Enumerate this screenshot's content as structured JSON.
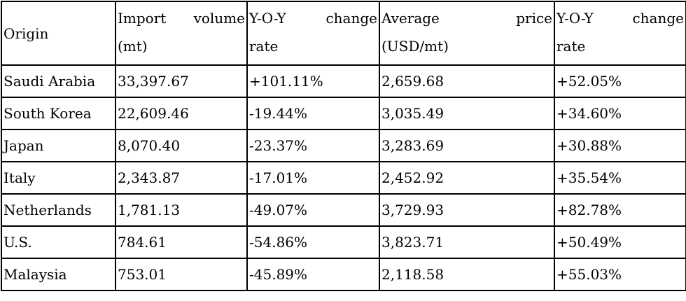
{
  "table": {
    "headers": [
      {
        "lines": [
          [
            "Origin"
          ]
        ]
      },
      {
        "lines": [
          [
            "Import",
            "volume"
          ],
          [
            "(mt)"
          ]
        ]
      },
      {
        "lines": [
          [
            "Y-O-Y",
            "change"
          ],
          [
            "rate"
          ]
        ]
      },
      {
        "lines": [
          [
            "Average",
            "price"
          ],
          [
            "(USD/mt)"
          ]
        ]
      },
      {
        "lines": [
          [
            "Y-O-Y",
            "change"
          ],
          [
            "rate"
          ]
        ]
      }
    ],
    "rows": [
      [
        "Saudi Arabia",
        "33,397.67",
        "+101.11%",
        "2,659.68",
        "+52.05%"
      ],
      [
        "South Korea",
        "22,609.46",
        "-19.44%",
        "3,035.49",
        "+34.60%"
      ],
      [
        "Japan",
        "8,070.40",
        "-23.37%",
        "3,283.69",
        "+30.88%"
      ],
      [
        "Italy",
        "2,343.87",
        "-17.01%",
        "2,452.92",
        "+35.54%"
      ],
      [
        "Netherlands",
        "1,781.13",
        "-49.07%",
        "3,729.93",
        "+82.78%"
      ],
      [
        "U.S.",
        "784.61",
        "-54.86%",
        "3,823.71",
        "+50.49%"
      ],
      [
        "Malaysia",
        "753.01",
        "-45.89%",
        "2,118.58",
        "+55.03%"
      ]
    ]
  }
}
